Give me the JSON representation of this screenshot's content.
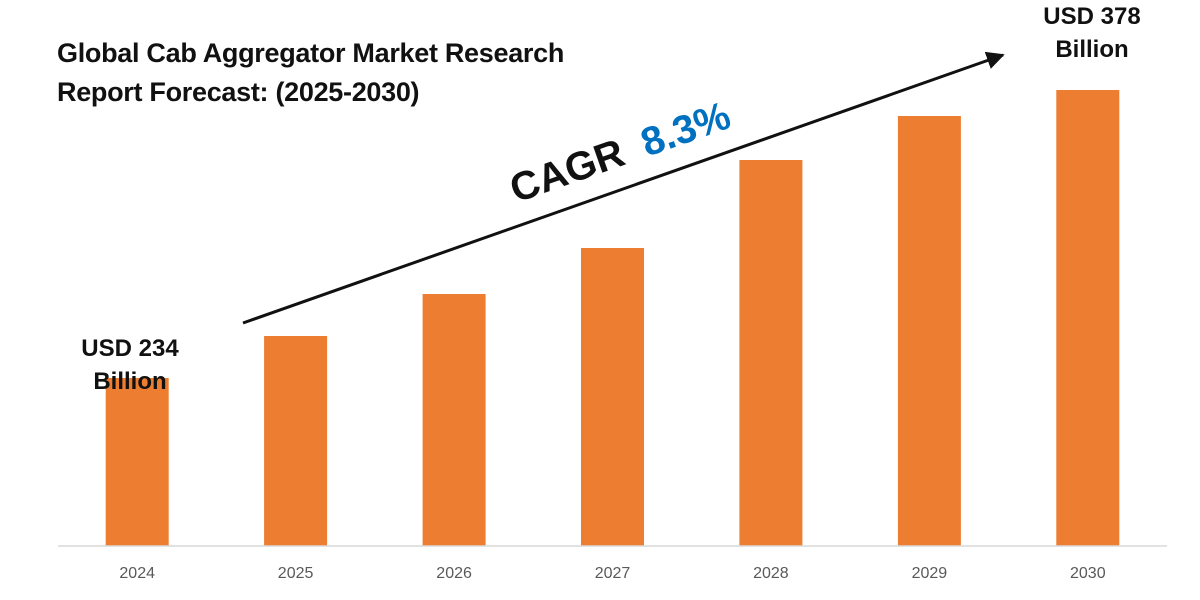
{
  "chart_data": {
    "type": "bar",
    "title_lines": [
      "Global Cab Aggregator Market Research",
      "Report Forecast: (2025-2030)"
    ],
    "categories": [
      "2024",
      "2025",
      "2026",
      "2027",
      "2028",
      "2029",
      "2030"
    ],
    "values": [
      234,
      255,
      276,
      299,
      343,
      365,
      378
    ],
    "value_unit": "USD Billion",
    "callouts": {
      "start": {
        "line1": "USD 234",
        "line2": "Billion"
      },
      "end": {
        "line1": "USD 378",
        "line2": "Billion"
      }
    },
    "cagr": {
      "label": "CAGR",
      "value": "8.3%"
    },
    "ylim": [
      150,
      400
    ],
    "grid": false,
    "legend": "none",
    "colors": {
      "bar": "#ED7D31",
      "cagr_value": "#0070C0",
      "text": "#111111",
      "axis": "#D9D9D9",
      "tick": "#595959"
    }
  }
}
